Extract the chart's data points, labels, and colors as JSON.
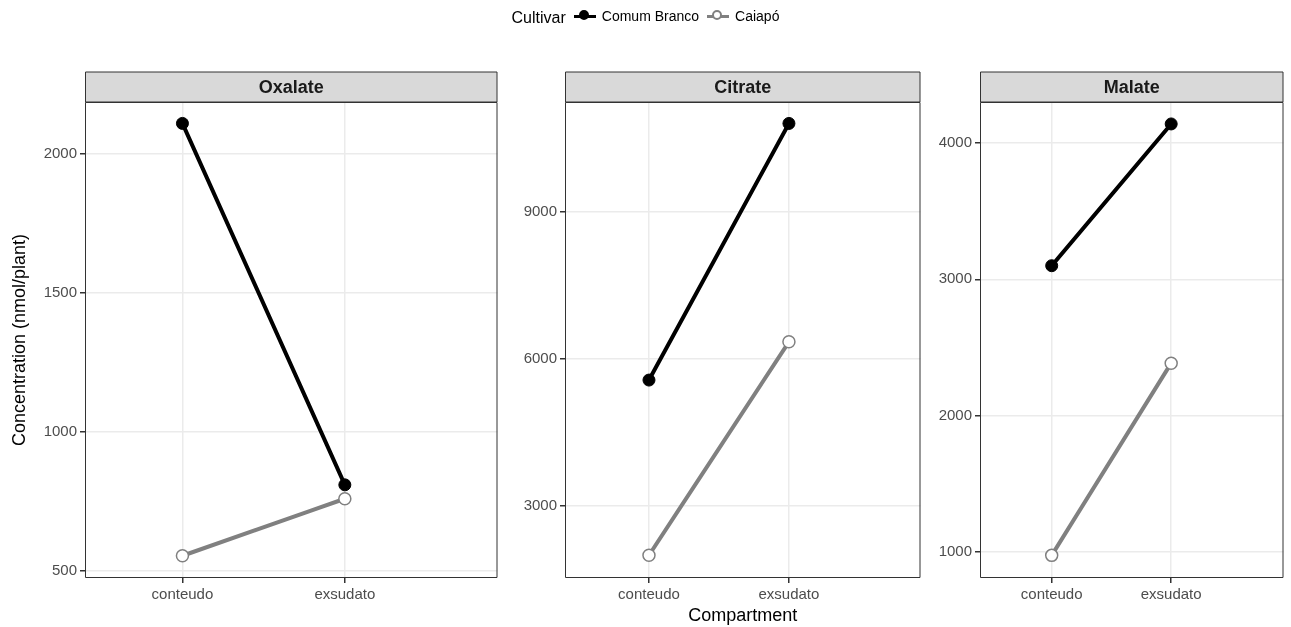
{
  "chart_data": [
    {
      "type": "line",
      "title": "Oxalate",
      "ylabel": "Concentration (nmol/plant)",
      "legend_title": "Cultivar",
      "legend": "top",
      "categories": [
        "conteudo",
        "exsudato"
      ],
      "series": [
        {
          "name": "Comum Branco",
          "color": "#000000",
          "values": [
            2110,
            810
          ]
        },
        {
          "name": "Caiapó",
          "color": "#808080",
          "values": [
            555,
            760
          ]
        }
      ],
      "ylim": [
        475,
        2187
      ],
      "yticks": [
        500,
        1000,
        1500,
        2000
      ],
      "grid": true,
      "marker": "circle",
      "line_style": "solid"
    },
    {
      "type": "line",
      "title": "Citrate",
      "xlabel": "Compartment",
      "categories": [
        "conteudo",
        "exsudato"
      ],
      "series": [
        {
          "color": "#000000",
          "values": [
            5570,
            10800
          ]
        },
        {
          "color": "#808080",
          "values": [
            2000,
            6350
          ]
        }
      ],
      "ylim": [
        1536,
        11237
      ],
      "yticks": [
        3000,
        6000,
        9000
      ],
      "grid": true,
      "marker": "circle",
      "line_style": "solid"
    },
    {
      "type": "line",
      "title": "Malate",
      "categories": [
        "conteudo",
        "exsudato"
      ],
      "series": [
        {
          "color": "#000000",
          "values": [
            3100,
            4140
          ]
        },
        {
          "color": "#808080",
          "values": [
            975,
            2385
          ]
        }
      ],
      "ylim": [
        809,
        4301
      ],
      "yticks": [
        1000,
        2000,
        3000,
        4000
      ],
      "grid": true,
      "marker": "circle",
      "line_style": "solid"
    }
  ]
}
